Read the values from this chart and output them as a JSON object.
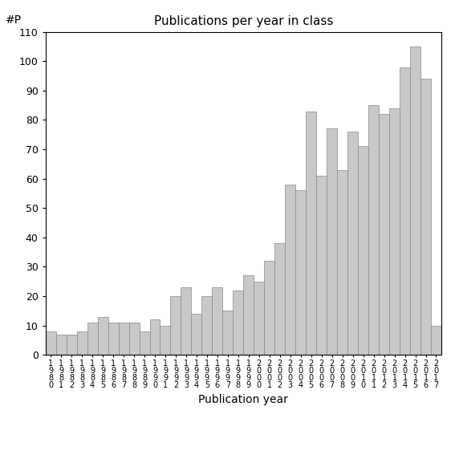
{
  "title": "Publications per year in class",
  "xlabel": "Publication year",
  "ylabel": "#P",
  "ylim": [
    0,
    110
  ],
  "yticks": [
    0,
    10,
    20,
    30,
    40,
    50,
    60,
    70,
    80,
    90,
    100,
    110
  ],
  "bar_color": "#c8c8c8",
  "bar_edge_color": "#888888",
  "background_color": "#ffffff",
  "years": [
    "1980",
    "1981",
    "1982",
    "1983",
    "1984",
    "1985",
    "1986",
    "1987",
    "1988",
    "1989",
    "1990",
    "1991",
    "1992",
    "1993",
    "1994",
    "1995",
    "1996",
    "1997",
    "1998",
    "1999",
    "2000",
    "2001",
    "2002",
    "2003",
    "2004",
    "2005",
    "2006",
    "2007",
    "2008",
    "2009",
    "2010",
    "2011",
    "2012",
    "2013",
    "2014",
    "2015",
    "2016",
    "2017"
  ],
  "values": [
    8,
    7,
    7,
    8,
    11,
    13,
    11,
    11,
    11,
    8,
    12,
    10,
    20,
    23,
    14,
    20,
    23,
    15,
    22,
    27,
    25,
    32,
    38,
    58,
    56,
    83,
    61,
    77,
    63,
    76,
    71,
    85,
    82,
    84,
    98,
    105,
    94,
    10
  ]
}
